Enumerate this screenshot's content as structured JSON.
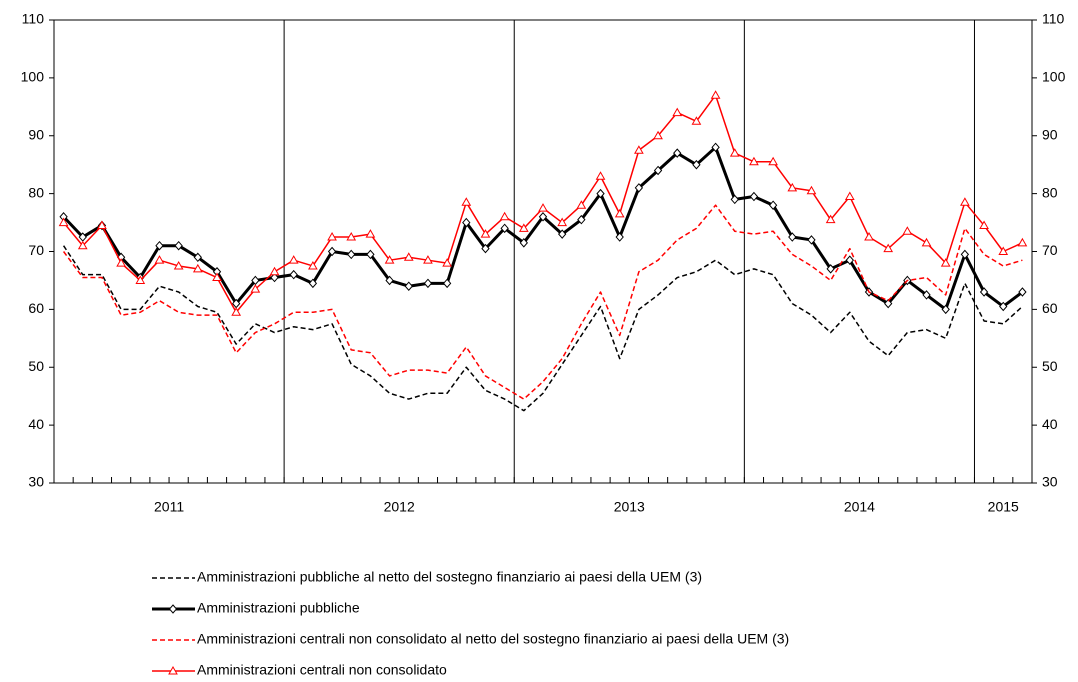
{
  "chart_data": {
    "type": "line",
    "categories": [
      null,
      null,
      null,
      null,
      null,
      null,
      null,
      null,
      null,
      null,
      null,
      null,
      null,
      null,
      null,
      null,
      null,
      null,
      null,
      null,
      null,
      null,
      null,
      null,
      null,
      null,
      null,
      null,
      null,
      null,
      null,
      null,
      null,
      null,
      null,
      null,
      null,
      null,
      null,
      null,
      null,
      null,
      null,
      null,
      null,
      null,
      null,
      null,
      null,
      null,
      null
    ],
    "groups": [
      {
        "label": "2011",
        "span": 12
      },
      {
        "label": "2012",
        "span": 12
      },
      {
        "label": "2013",
        "span": 12
      },
      {
        "label": "2014",
        "span": 12
      },
      {
        "label": "2015",
        "span": 3
      }
    ],
    "ylim": [
      30,
      110
    ],
    "yticks": [
      30,
      40,
      50,
      60,
      70,
      80,
      90,
      100,
      110
    ],
    "y2lim": [
      30,
      110
    ],
    "y2ticks": [
      30,
      40,
      50,
      60,
      70,
      80,
      90,
      100,
      110
    ],
    "series": [
      {
        "name": "Amministrazioni pubbliche al netto del sostegno finanziario ai paesi della UEM (3)",
        "color": "#000000",
        "dash": true,
        "width": 1.5,
        "marker": null,
        "values": [
          71,
          66,
          66,
          60,
          60,
          64,
          63,
          60.5,
          59.5,
          54,
          57.5,
          56,
          57,
          56.5,
          57.5,
          50.5,
          48.5,
          45.5,
          44.5,
          45.5,
          45.5,
          50,
          46,
          44.5,
          42.5,
          45.5,
          50.5,
          55.5,
          60.5,
          51.5,
          60,
          62.5,
          65.5,
          66.5,
          68.5,
          66,
          67,
          66,
          61,
          59,
          56,
          59.5,
          54.5,
          52,
          56,
          56.5,
          55,
          64.5,
          58,
          57.5,
          60.5
        ]
      },
      {
        "name": "Amministrazioni pubbliche",
        "color": "#000000",
        "dash": false,
        "width": 3,
        "marker": "diamond",
        "values": [
          76,
          72.5,
          74.5,
          69,
          65.5,
          71,
          71,
          69,
          66.5,
          61,
          65,
          65.5,
          66,
          64.5,
          70,
          69.5,
          69.5,
          65,
          64,
          64.5,
          64.5,
          75,
          70.5,
          74,
          71.5,
          76,
          73,
          75.5,
          80,
          72.5,
          81,
          84,
          87,
          85,
          88,
          79,
          79.5,
          78,
          72.5,
          72,
          67,
          68.5,
          63,
          61,
          65,
          62.5,
          60,
          69.5,
          63,
          60.5,
          63
        ]
      },
      {
        "name": "Amministrazioni centrali non consolidato al netto del sostegno finanziario ai paesi della UEM (3)",
        "color": "#ff0000",
        "dash": true,
        "width": 1.5,
        "marker": null,
        "values": [
          70,
          65.5,
          65.5,
          59,
          59.5,
          61.5,
          59.5,
          59,
          59,
          52.5,
          56,
          57.5,
          59.5,
          59.5,
          60,
          53,
          52.5,
          48.5,
          49.5,
          49.5,
          49,
          53.5,
          48.5,
          46.5,
          44.5,
          47.5,
          51.5,
          57.5,
          63,
          55.5,
          66.5,
          68.5,
          72,
          74,
          78,
          73.5,
          73,
          73.5,
          69.5,
          67.5,
          65,
          70.5,
          63,
          61.5,
          65,
          65.5,
          62.5,
          74,
          69.5,
          67.5,
          68.5
        ]
      },
      {
        "name": "Amministrazioni centrali non consolidato",
        "color": "#ff0000",
        "dash": false,
        "width": 1.5,
        "marker": "triangle",
        "values": [
          75,
          71,
          74.5,
          68,
          65,
          68.5,
          67.5,
          67,
          65.5,
          59.5,
          63.5,
          66.5,
          68.5,
          67.5,
          72.5,
          72.5,
          73,
          68.5,
          69,
          68.5,
          68,
          78.5,
          73,
          76,
          74,
          77.5,
          75,
          78,
          83,
          76.5,
          87.5,
          90,
          94,
          92.5,
          97,
          87,
          85.5,
          85.5,
          81,
          80.5,
          75.5,
          79.5,
          72.5,
          70.5,
          73.5,
          71.5,
          68,
          78.5,
          74.5,
          70,
          71.5
        ]
      }
    ]
  }
}
